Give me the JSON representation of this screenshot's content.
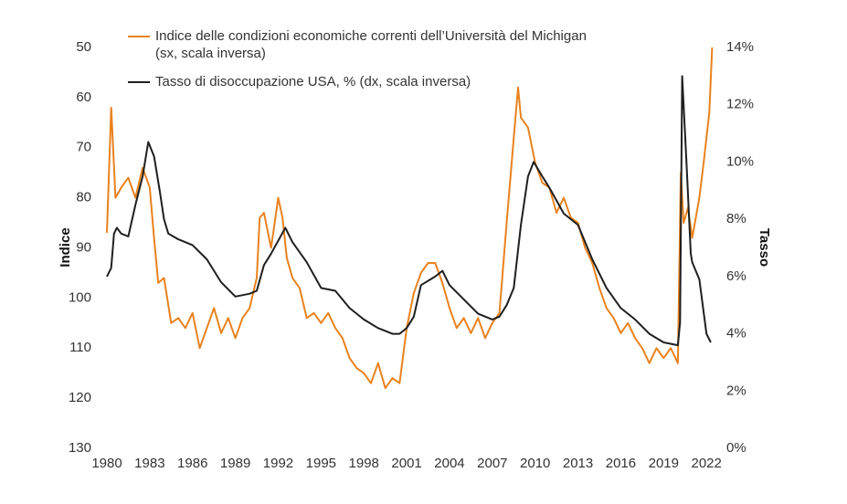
{
  "chart_data": {
    "type": "line",
    "xlim": [
      1980,
      2022.5
    ],
    "xticks": [
      1980,
      1983,
      1986,
      1989,
      1992,
      1995,
      1998,
      2001,
      2004,
      2007,
      2010,
      2013,
      2016,
      2019,
      2022
    ],
    "ylim": [
      130,
      50
    ],
    "yticks": [
      50,
      60,
      70,
      80,
      90,
      100,
      110,
      120,
      130
    ],
    "y2lim": [
      0,
      14
    ],
    "y2ticks": [
      {
        "value": 0,
        "label": "0%"
      },
      {
        "value": 2,
        "label": "2%"
      },
      {
        "value": 4,
        "label": "4%"
      },
      {
        "value": 6,
        "label": "6%"
      },
      {
        "value": 8,
        "label": "8%"
      },
      {
        "value": 10,
        "label": "10%"
      },
      {
        "value": 12,
        "label": "12%"
      },
      {
        "value": 14,
        "label": "14%"
      }
    ],
    "ylabel": "Indice",
    "y2label": "Tasso",
    "series": [
      {
        "name": "Indice delle condizioni economiche correnti dell’Università del Michigan (sx, scala inversa)",
        "color": "#e8821e",
        "axis": "y",
        "x": [
          1980.0,
          1980.3,
          1980.6,
          1981.0,
          1981.5,
          1982.0,
          1982.5,
          1983.0,
          1983.3,
          1983.6,
          1984.0,
          1984.5,
          1985.0,
          1985.5,
          1986.0,
          1986.5,
          1987.0,
          1987.5,
          1988.0,
          1988.5,
          1989.0,
          1989.5,
          1990.0,
          1990.5,
          1990.7,
          1991.0,
          1991.5,
          1992.0,
          1992.3,
          1992.6,
          1993.0,
          1993.5,
          1994.0,
          1994.5,
          1995.0,
          1995.5,
          1996.0,
          1996.5,
          1997.0,
          1997.5,
          1998.0,
          1998.5,
          1999.0,
          1999.5,
          2000.0,
          2000.5,
          2001.0,
          2001.5,
          2002.0,
          2002.5,
          2003.0,
          2003.5,
          2004.0,
          2004.5,
          2005.0,
          2005.5,
          2006.0,
          2006.5,
          2007.0,
          2007.5,
          2008.0,
          2008.5,
          2008.8,
          2009.0,
          2009.5,
          2010.0,
          2010.5,
          2011.0,
          2011.5,
          2012.0,
          2012.5,
          2013.0,
          2013.5,
          2014.0,
          2014.5,
          2015.0,
          2015.5,
          2016.0,
          2016.5,
          2017.0,
          2017.5,
          2018.0,
          2018.5,
          2019.0,
          2019.5,
          2020.0,
          2020.2,
          2020.4,
          2020.7,
          2021.0,
          2021.5,
          2021.8,
          2022.0,
          2022.2,
          2022.4
        ],
        "values": [
          87,
          62,
          80,
          78,
          76,
          80,
          74,
          78,
          88,
          97,
          96,
          105,
          104,
          106,
          103,
          110,
          106,
          102,
          107,
          104,
          108,
          104,
          102,
          96,
          84,
          83,
          90,
          80,
          84,
          92,
          96,
          98,
          104,
          103,
          105,
          103,
          106,
          108,
          112,
          114,
          115,
          117,
          113,
          118,
          116,
          117,
          106,
          99,
          95,
          93,
          93,
          97,
          102,
          106,
          104,
          107,
          104,
          108,
          105,
          103,
          85,
          68,
          58,
          64,
          66,
          73,
          77,
          78,
          83,
          80,
          84,
          85,
          90,
          93,
          98,
          102,
          104,
          107,
          105,
          108,
          110,
          113,
          110,
          112,
          110,
          113,
          75,
          85,
          82,
          88,
          80,
          73,
          68,
          63,
          50
        ]
      },
      {
        "name": "Tasso di disoccupazione USA, % (dx, scala inversa)",
        "color": "#1f1f1f",
        "axis": "y2",
        "x": [
          1980.0,
          1980.3,
          1980.5,
          1980.7,
          1981.0,
          1981.5,
          1982.0,
          1982.5,
          1982.9,
          1983.3,
          1983.7,
          1984.0,
          1984.3,
          1985.0,
          1986.0,
          1987.0,
          1988.0,
          1989.0,
          1990.0,
          1990.5,
          1991.0,
          1991.5,
          1992.5,
          1993.0,
          1994.0,
          1995.0,
          1996.0,
          1997.0,
          1998.0,
          1999.0,
          2000.0,
          2000.5,
          2001.0,
          2001.5,
          2002.0,
          2003.0,
          2003.5,
          2004.0,
          2005.0,
          2006.0,
          2007.0,
          2007.5,
          2008.0,
          2008.5,
          2009.0,
          2009.5,
          2009.9,
          2010.5,
          2011.0,
          2012.0,
          2013.0,
          2014.0,
          2015.0,
          2016.0,
          2017.0,
          2018.0,
          2019.0,
          2020.0,
          2020.15,
          2020.3,
          2020.6,
          2020.9,
          2021.0,
          2021.5,
          2022.0,
          2022.3
        ],
        "values": [
          6.0,
          6.3,
          7.5,
          7.7,
          7.5,
          7.4,
          8.5,
          9.5,
          10.7,
          10.2,
          9.0,
          8.0,
          7.5,
          7.3,
          7.1,
          6.6,
          5.8,
          5.3,
          5.4,
          5.5,
          6.4,
          6.8,
          7.7,
          7.2,
          6.5,
          5.6,
          5.5,
          4.9,
          4.5,
          4.2,
          4.0,
          4.0,
          4.2,
          4.6,
          5.7,
          6.0,
          6.2,
          5.7,
          5.2,
          4.7,
          4.5,
          4.6,
          5.0,
          5.6,
          7.8,
          9.5,
          10.0,
          9.5,
          9.1,
          8.2,
          7.8,
          6.6,
          5.6,
          4.9,
          4.5,
          4.0,
          3.7,
          3.6,
          4.4,
          13.0,
          10.0,
          6.8,
          6.5,
          5.9,
          4.0,
          3.7
        ]
      }
    ]
  }
}
